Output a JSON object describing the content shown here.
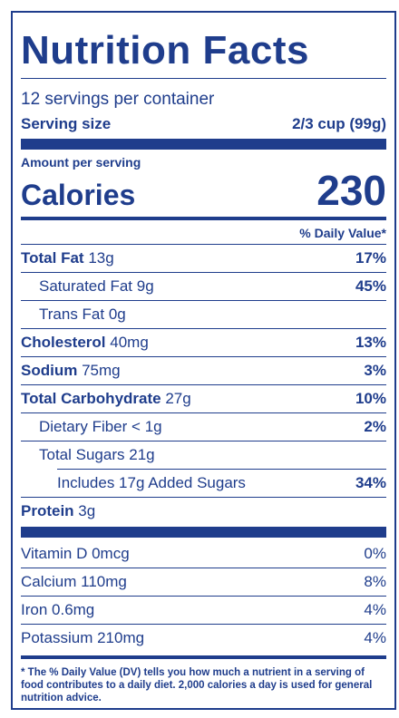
{
  "title": "Nutrition Facts",
  "servings_per_container": "12 servings per container",
  "serving_size": {
    "label": "Serving size",
    "value": "2/3 cup (99g)"
  },
  "amount_per_serving": "Amount per serving",
  "calories": {
    "label": "Calories",
    "value": "230"
  },
  "daily_value_header": "% Daily Value*",
  "nutrients": [
    {
      "name": "Total Fat",
      "amount": "13g",
      "dv": "17%"
    },
    {
      "name": "Saturated Fat",
      "amount": "9g",
      "dv": "45%"
    },
    {
      "name": "Trans Fat",
      "amount": "0g",
      "dv": ""
    },
    {
      "name": "Cholesterol",
      "amount": "40mg",
      "dv": "13%"
    },
    {
      "name": "Sodium",
      "amount": "75mg",
      "dv": "3%"
    },
    {
      "name": "Total Carbohydrate",
      "amount": "27g",
      "dv": "10%"
    },
    {
      "name": "Dietary Fiber",
      "amount": "< 1g",
      "dv": "2%"
    },
    {
      "name": "Total Sugars",
      "amount": "21g",
      "dv": ""
    },
    {
      "name": "Includes 17g Added Sugars",
      "amount": "",
      "dv": "34%"
    },
    {
      "name": "Protein",
      "amount": "3g",
      "dv": ""
    }
  ],
  "vitamins": [
    {
      "label": "Vitamin D 0mcg",
      "dv": "0%"
    },
    {
      "label": "Calcium 110mg",
      "dv": "8%"
    },
    {
      "label": "Iron 0.6mg",
      "dv": "4%"
    },
    {
      "label": "Potassium 210mg",
      "dv": "4%"
    }
  ],
  "footnote": "* The % Daily Value (DV) tells you how much a nutrient in a serving of food contributes to a daily diet. 2,000 calories a day is used for general nutrition advice.",
  "colors": {
    "ink": "#1f3d8c",
    "background": "#ffffff"
  }
}
